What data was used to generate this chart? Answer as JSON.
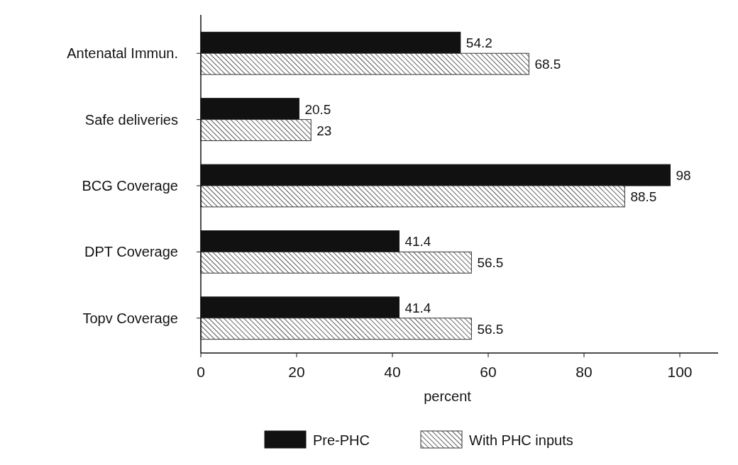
{
  "chart_data": {
    "type": "bar",
    "orientation": "horizontal",
    "categories": [
      "Antenatal Immun.",
      "Safe deliveries",
      "BCG Coverage",
      "DPT Coverage",
      "Topv Coverage"
    ],
    "series": [
      {
        "name": "Pre-PHC",
        "color": "#111111",
        "values": [
          54.2,
          20.5,
          98,
          41.4,
          41.4
        ]
      },
      {
        "name": "With PHC inputs",
        "color": "#333333",
        "values": [
          68.5,
          23,
          88.5,
          56.5,
          56.5
        ]
      }
    ],
    "xlim": [
      0,
      108
    ],
    "xticks": [
      0,
      20,
      40,
      60,
      80,
      100
    ],
    "xlabel": "percent",
    "data_labels": true,
    "legend": "bottom",
    "grid": false
  }
}
